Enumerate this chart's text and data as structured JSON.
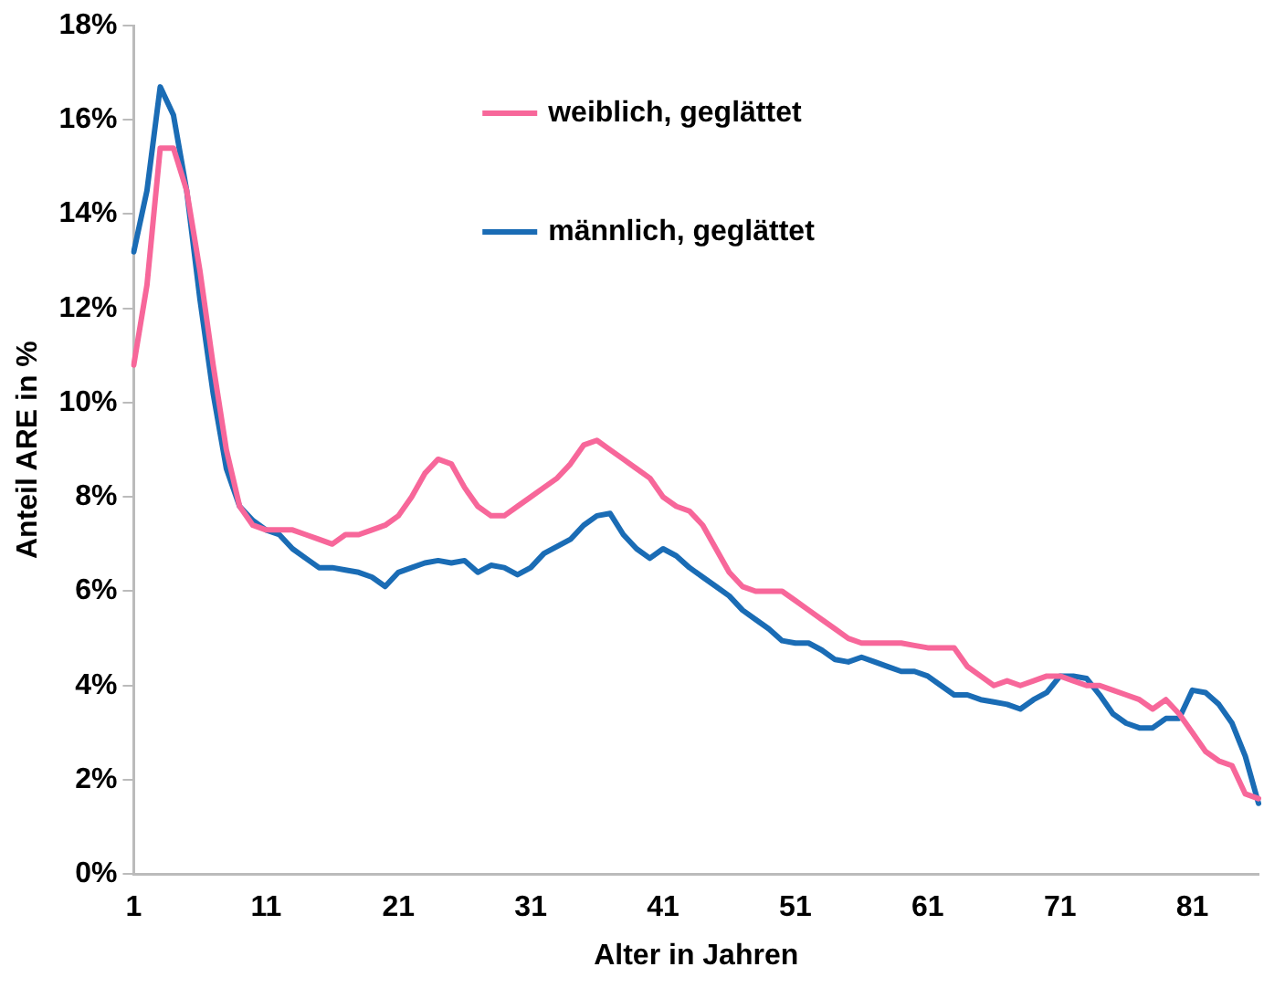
{
  "chart_data": {
    "type": "line",
    "xlabel": "Alter in Jahren",
    "ylabel": "Anteil ARE in %",
    "categories": [
      "1",
      null,
      null,
      null,
      null,
      null,
      null,
      null,
      null,
      null,
      "11",
      null,
      null,
      null,
      null,
      null,
      null,
      null,
      null,
      null,
      "21",
      null,
      null,
      null,
      null,
      null,
      null,
      null,
      null,
      null,
      "31",
      null,
      null,
      null,
      null,
      null,
      null,
      null,
      null,
      null,
      "41",
      null,
      null,
      null,
      null,
      null,
      null,
      null,
      null,
      null,
      "51",
      null,
      null,
      null,
      null,
      null,
      null,
      null,
      null,
      null,
      "61",
      null,
      null,
      null,
      null,
      null,
      null,
      null,
      null,
      null,
      "71",
      null,
      null,
      null,
      null,
      null,
      null,
      null,
      null,
      null,
      "81",
      null,
      null,
      null,
      null,
      null
    ],
    "series": [
      {
        "name": "weiblich, geglättet",
        "color": "#f7679a",
        "values": [
          10.8,
          12.5,
          15.4,
          15.4,
          14.5,
          12.8,
          10.8,
          9.0,
          7.8,
          7.4,
          7.3,
          7.3,
          7.3,
          7.2,
          7.1,
          7.0,
          7.2,
          7.2,
          7.3,
          7.4,
          7.6,
          8.0,
          8.5,
          8.8,
          8.7,
          8.2,
          7.8,
          7.6,
          7.6,
          7.8,
          8.0,
          8.2,
          8.4,
          8.7,
          9.1,
          9.2,
          9.0,
          8.8,
          8.6,
          8.4,
          8.0,
          7.8,
          7.7,
          7.4,
          6.9,
          6.4,
          6.1,
          6.0,
          6.0,
          6.0,
          5.8,
          5.6,
          5.4,
          5.2,
          5.0,
          4.9,
          4.9,
          4.9,
          4.9,
          4.85,
          4.8,
          4.8,
          4.8,
          4.4,
          4.2,
          4.0,
          4.1,
          4.0,
          4.1,
          4.2,
          4.2,
          4.1,
          4.0,
          4.0,
          3.9,
          3.8,
          3.7,
          3.5,
          3.7,
          3.4,
          3.0,
          2.6,
          2.4,
          2.3,
          1.7,
          1.6
        ]
      },
      {
        "name": "männlich, geglättet",
        "color": "#1a6cb5",
        "values": [
          13.2,
          14.5,
          16.7,
          16.1,
          14.5,
          12.2,
          10.2,
          8.6,
          7.8,
          7.5,
          7.3,
          7.2,
          6.9,
          6.7,
          6.5,
          6.5,
          6.45,
          6.4,
          6.3,
          6.1,
          6.4,
          6.5,
          6.6,
          6.65,
          6.6,
          6.65,
          6.4,
          6.55,
          6.5,
          6.35,
          6.5,
          6.8,
          6.95,
          7.1,
          7.4,
          7.6,
          7.65,
          7.2,
          6.9,
          6.7,
          6.9,
          6.75,
          6.5,
          6.3,
          6.1,
          5.9,
          5.6,
          5.4,
          5.2,
          4.95,
          4.9,
          4.9,
          4.75,
          4.55,
          4.5,
          4.6,
          4.5,
          4.4,
          4.3,
          4.3,
          4.2,
          4.0,
          3.8,
          3.8,
          3.7,
          3.65,
          3.6,
          3.5,
          3.7,
          3.85,
          4.2,
          4.2,
          4.15,
          3.8,
          3.4,
          3.2,
          3.1,
          3.1,
          3.3,
          3.3,
          3.9,
          3.85,
          3.6,
          3.2,
          2.5,
          1.5
        ]
      }
    ],
    "ylim": [
      0,
      18
    ],
    "yticks": [
      {
        "value": 0,
        "label": "0%"
      },
      {
        "value": 2,
        "label": "2%"
      },
      {
        "value": 4,
        "label": "4%"
      },
      {
        "value": 6,
        "label": "6%"
      },
      {
        "value": 8,
        "label": "8%"
      },
      {
        "value": 10,
        "label": "10%"
      },
      {
        "value": 12,
        "label": "12%"
      },
      {
        "value": 14,
        "label": "14%"
      },
      {
        "value": 16,
        "label": "16%"
      },
      {
        "value": 18,
        "label": "18%"
      }
    ],
    "grid": false,
    "legend": "top",
    "marker": "none",
    "line_style": "solid"
  }
}
